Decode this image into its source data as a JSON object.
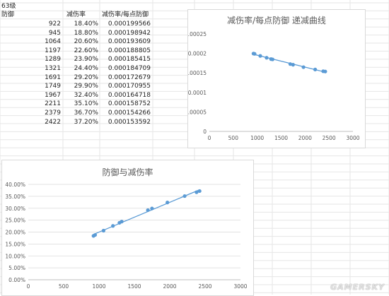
{
  "sheet": {
    "level_label": "63级",
    "headers": [
      "防御",
      "减伤率",
      "减伤率/每点防御"
    ],
    "rows": [
      [
        "922",
        "18.40%",
        "0.000199566"
      ],
      [
        "945",
        "18.80%",
        "0.000198942"
      ],
      [
        "1064",
        "20.60%",
        "0.000193609"
      ],
      [
        "1197",
        "22.60%",
        "0.000188805"
      ],
      [
        "1289",
        "23.90%",
        "0.000185415"
      ],
      [
        "1321",
        "24.40%",
        "0.000184709"
      ],
      [
        "1691",
        "29.20%",
        "0.000172679"
      ],
      [
        "1749",
        "29.90%",
        "0.000170955"
      ],
      [
        "1967",
        "32.40%",
        "0.000164718"
      ],
      [
        "2211",
        "35.10%",
        "0.000158752"
      ],
      [
        "2379",
        "36.70%",
        "0.000154266"
      ],
      [
        "2422",
        "37.20%",
        "0.000153592"
      ]
    ]
  },
  "chart_data": [
    {
      "type": "scatter",
      "title": "减伤率/每点防御 递减曲线",
      "x": [
        922,
        945,
        1064,
        1197,
        1289,
        1321,
        1691,
        1749,
        1967,
        2211,
        2379,
        2422
      ],
      "y": [
        0.000199566,
        0.000198942,
        0.000193609,
        0.000188805,
        0.000185415,
        0.000184709,
        0.000172679,
        0.000170955,
        0.000164718,
        0.000158752,
        0.000154266,
        0.000153592
      ],
      "xlim": [
        0,
        3000
      ],
      "ylim": [
        0,
        0.00025
      ],
      "x_ticks": [
        "0",
        "500",
        "1000",
        "1500",
        "2000",
        "2500",
        "3000"
      ],
      "y_ticks": [
        "0",
        "0.00005",
        "0.0001",
        "0.00015",
        "0.0002",
        "0.00025"
      ],
      "trendline": true,
      "color": "#5b9bd5",
      "grid": false
    },
    {
      "type": "scatter",
      "title": "防御与减伤率",
      "x": [
        922,
        945,
        1064,
        1197,
        1289,
        1321,
        1691,
        1749,
        1967,
        2211,
        2379,
        2422
      ],
      "y": [
        18.4,
        18.8,
        20.6,
        22.6,
        23.9,
        24.4,
        29.2,
        29.9,
        32.4,
        35.1,
        36.7,
        37.2
      ],
      "xlim": [
        0,
        3000
      ],
      "ylim": [
        0,
        40
      ],
      "x_ticks": [
        "0",
        "500",
        "1000",
        "1500",
        "2000",
        "2500",
        "3000"
      ],
      "y_ticks": [
        "0.00%",
        "5.00%",
        "10.00%",
        "15.00%",
        "20.00%",
        "25.00%",
        "30.00%",
        "35.00%",
        "40.00%"
      ],
      "trendline": true,
      "color": "#5b9bd5",
      "grid": true
    }
  ],
  "watermark": "GAMERSKY"
}
